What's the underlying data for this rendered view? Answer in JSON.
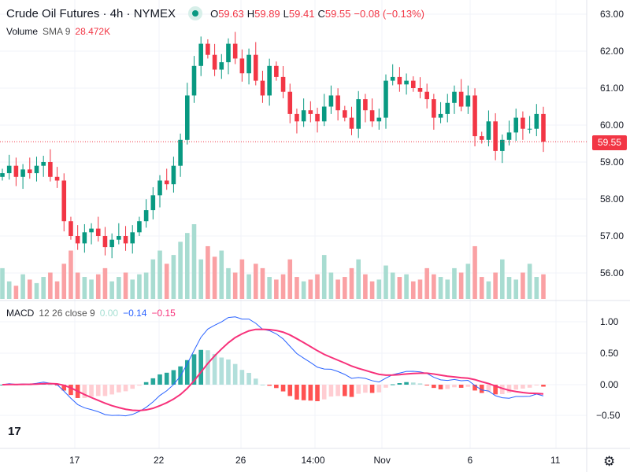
{
  "header": {
    "title": "Crude Oil Futures · 4h · NYMEX",
    "o_label": "O",
    "o": "59.63",
    "h_label": "H",
    "h": "59.89",
    "l_label": "L",
    "l": "59.41",
    "c_label": "C",
    "c": "59.55",
    "change": "−0.08 (−0.13%)"
  },
  "volume": {
    "label": "Volume",
    "sma": "SMA 9",
    "value": "28.472K"
  },
  "macd": {
    "label": "MACD",
    "params": "12 26 close 9",
    "hist": "0.00",
    "macd": "−0.14",
    "signal": "−0.15"
  },
  "price_tag": "59.55",
  "colors": {
    "up": "#089981",
    "down": "#f23645",
    "macd": "#2962ff",
    "signal": "#f7317a"
  },
  "chart_data": {
    "type": "candlestick",
    "price_ticks": [
      "63.00",
      "62.00",
      "61.00",
      "60.00",
      "59.00",
      "58.00",
      "57.00",
      "56.00"
    ],
    "macd_ticks": [
      "1.00",
      "0.50",
      "0.00",
      "−0.50"
    ],
    "x_ticks": [
      "17",
      "22",
      "26",
      "14:00",
      "Nov",
      "6",
      "11"
    ],
    "closes": [
      58.7,
      58.9,
      58.6,
      58.8,
      58.7,
      58.9,
      59.0,
      58.6,
      58.5,
      57.4,
      57.0,
      56.8,
      57.1,
      57.2,
      57.0,
      56.7,
      56.9,
      57.0,
      56.8,
      57.1,
      57.4,
      57.7,
      58.1,
      58.5,
      58.4,
      58.9,
      59.6,
      60.8,
      61.6,
      62.2,
      61.9,
      61.5,
      61.7,
      62.2,
      61.8,
      61.4,
      61.9,
      61.2,
      60.8,
      61.6,
      61.3,
      60.9,
      60.3,
      60.1,
      60.4,
      60.3,
      60.1,
      60.5,
      60.8,
      60.4,
      60.2,
      59.9,
      60.7,
      60.4,
      60.1,
      60.2,
      61.2,
      61.3,
      61.1,
      61.2,
      61.0,
      60.9,
      60.7,
      60.2,
      60.3,
      60.6,
      60.9,
      60.5,
      60.8,
      59.7,
      59.6,
      60.1,
      59.3,
      59.6,
      59.8,
      60.2,
      59.9,
      59.9,
      60.3,
      59.55
    ],
    "volumes": [
      35,
      20,
      15,
      28,
      22,
      18,
      25,
      30,
      20,
      40,
      55,
      30,
      25,
      22,
      28,
      35,
      20,
      25,
      30,
      22,
      28,
      30,
      45,
      55,
      40,
      50,
      65,
      75,
      85,
      45,
      60,
      48,
      55,
      35,
      30,
      45,
      28,
      40,
      35,
      25,
      22,
      28,
      45,
      25,
      20,
      22,
      28,
      50,
      30,
      22,
      25,
      35,
      45,
      28,
      20,
      22,
      38,
      30,
      25,
      28,
      20,
      22,
      35,
      28,
      25,
      22,
      35,
      30,
      40,
      60,
      25,
      20,
      30,
      45,
      25,
      22,
      30,
      40,
      25,
      28
    ]
  }
}
